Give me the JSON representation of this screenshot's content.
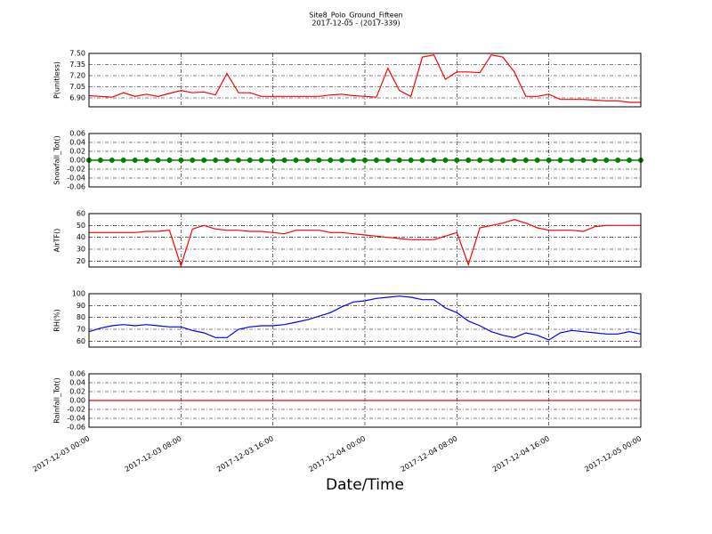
{
  "chart_data": [
    {
      "type": "line",
      "title": "Site8_Polo_Ground_Fifteen",
      "subtitle": "2017-12-05 - (2017-339)",
      "ylabel": "P(unitless)",
      "ylim": [
        6.78,
        7.5
      ],
      "yticks": [
        {
          "value": 6.9,
          "label": "6.90"
        },
        7.05,
        {
          "value": 7.2,
          "label": "7.20"
        },
        7.35,
        {
          "value": 7.5,
          "label": "7.50"
        }
      ],
      "xlim": [
        "2017-12-03 00:00",
        "2017-12-05 00:00"
      ],
      "xticks": [
        "2017-12-03 00:00",
        "2017-12-03 08:00",
        "2017-12-03 16:00",
        "2017-12-04 00:00",
        "2017-12-04 08:00",
        "2017-12-04 16:00",
        "2017-12-05 00:00"
      ],
      "grid": true,
      "x": [
        "2017-12-03 00:00",
        "2017-12-03 01:00",
        "2017-12-03 02:00",
        "2017-12-03 03:00",
        "2017-12-03 04:00",
        "2017-12-03 05:00",
        "2017-12-03 06:00",
        "2017-12-03 07:00",
        "2017-12-03 08:00",
        "2017-12-03 09:00",
        "2017-12-03 10:00",
        "2017-12-03 11:00",
        "2017-12-03 12:00",
        "2017-12-03 13:00",
        "2017-12-03 14:00",
        "2017-12-03 15:00",
        "2017-12-03 16:00",
        "2017-12-03 17:00",
        "2017-12-03 18:00",
        "2017-12-03 19:00",
        "2017-12-03 20:00",
        "2017-12-03 21:00",
        "2017-12-03 22:00",
        "2017-12-03 23:00",
        "2017-12-04 00:00",
        "2017-12-04 01:00",
        "2017-12-04 02:00",
        "2017-12-04 03:00",
        "2017-12-04 04:00",
        "2017-12-04 05:00",
        "2017-12-04 06:00",
        "2017-12-04 07:00",
        "2017-12-04 08:00",
        "2017-12-04 09:00",
        "2017-12-04 10:00",
        "2017-12-04 11:00",
        "2017-12-04 12:00",
        "2017-12-04 13:00",
        "2017-12-04 14:00",
        "2017-12-04 15:00",
        "2017-12-04 16:00",
        "2017-12-04 17:00",
        "2017-12-04 18:00",
        "2017-12-04 19:00",
        "2017-12-04 20:00",
        "2017-12-04 21:00",
        "2017-12-04 22:00",
        "2017-12-04 23:00",
        "2017-12-05 00:00"
      ],
      "series": [
        {
          "color": "#ff0000",
          "values": [
            6.93,
            6.92,
            6.91,
            6.97,
            6.92,
            6.95,
            6.92,
            6.96,
            7.0,
            6.97,
            6.98,
            6.94,
            7.23,
            6.97,
            6.97,
            6.92,
            6.92,
            6.92,
            6.92,
            6.92,
            6.92,
            6.94,
            6.95,
            6.93,
            6.92,
            6.91,
            7.3,
            7.0,
            6.92,
            7.45,
            7.48,
            7.15,
            7.25,
            7.25,
            7.24,
            7.48,
            7.45,
            7.25,
            6.92,
            6.92,
            6.95,
            6.88,
            6.88,
            6.88,
            6.87,
            6.86,
            6.86,
            6.84,
            6.84
          ]
        }
      ]
    },
    {
      "type": "line",
      "ylabel": "Snowfall_Tot()",
      "ylim": [
        -0.06,
        0.06
      ],
      "yticks": [
        -0.06,
        -0.04,
        -0.02,
        {
          "value": 0,
          "label": "0.00"
        },
        0.02,
        0.04,
        0.06
      ],
      "xlim": [
        "2017-12-03 00:00",
        "2017-12-05 00:00"
      ],
      "xticks": [
        "2017-12-03 00:00",
        "2017-12-03 08:00",
        "2017-12-03 16:00",
        "2017-12-04 00:00",
        "2017-12-04 08:00",
        "2017-12-04 16:00",
        "2017-12-05 00:00"
      ],
      "grid": true,
      "x": [
        "2017-12-03 00:00",
        "2017-12-03 01:00",
        "2017-12-03 02:00",
        "2017-12-03 03:00",
        "2017-12-03 04:00",
        "2017-12-03 05:00",
        "2017-12-03 06:00",
        "2017-12-03 07:00",
        "2017-12-03 08:00",
        "2017-12-03 09:00",
        "2017-12-03 10:00",
        "2017-12-03 11:00",
        "2017-12-03 12:00",
        "2017-12-03 13:00",
        "2017-12-03 14:00",
        "2017-12-03 15:00",
        "2017-12-03 16:00",
        "2017-12-03 17:00",
        "2017-12-03 18:00",
        "2017-12-03 19:00",
        "2017-12-03 20:00",
        "2017-12-03 21:00",
        "2017-12-03 22:00",
        "2017-12-03 23:00",
        "2017-12-04 00:00",
        "2017-12-04 01:00",
        "2017-12-04 02:00",
        "2017-12-04 03:00",
        "2017-12-04 04:00",
        "2017-12-04 05:00",
        "2017-12-04 06:00",
        "2017-12-04 07:00",
        "2017-12-04 08:00",
        "2017-12-04 09:00",
        "2017-12-04 10:00",
        "2017-12-04 11:00",
        "2017-12-04 12:00",
        "2017-12-04 13:00",
        "2017-12-04 14:00",
        "2017-12-04 15:00",
        "2017-12-04 16:00",
        "2017-12-04 17:00",
        "2017-12-04 18:00",
        "2017-12-04 19:00",
        "2017-12-04 20:00",
        "2017-12-04 21:00",
        "2017-12-04 22:00",
        "2017-12-04 23:00",
        "2017-12-05 00:00"
      ],
      "series": [
        {
          "color": "#008000",
          "marker": true,
          "values": [
            0,
            0,
            0,
            0,
            0,
            0,
            0,
            0,
            0,
            0,
            0,
            0,
            0,
            0,
            0,
            0,
            0,
            0,
            0,
            0,
            0,
            0,
            0,
            0,
            0,
            0,
            0,
            0,
            0,
            0,
            0,
            0,
            0,
            0,
            0,
            0,
            0,
            0,
            0,
            0,
            0,
            0,
            0,
            0,
            0,
            0,
            0,
            0,
            0
          ]
        }
      ]
    },
    {
      "type": "line",
      "ylabel": "AirTF()",
      "ylim": [
        15,
        60
      ],
      "yticks": [
        20,
        30,
        40,
        50,
        60
      ],
      "xlim": [
        "2017-12-03 00:00",
        "2017-12-05 00:00"
      ],
      "xticks": [
        "2017-12-03 00:00",
        "2017-12-03 08:00",
        "2017-12-03 16:00",
        "2017-12-04 00:00",
        "2017-12-04 08:00",
        "2017-12-04 16:00",
        "2017-12-05 00:00"
      ],
      "grid": true,
      "x": [
        "2017-12-03 00:00",
        "2017-12-03 01:00",
        "2017-12-03 02:00",
        "2017-12-03 03:00",
        "2017-12-03 04:00",
        "2017-12-03 05:00",
        "2017-12-03 06:00",
        "2017-12-03 07:00",
        "2017-12-03 08:00",
        "2017-12-03 09:00",
        "2017-12-03 10:00",
        "2017-12-03 11:00",
        "2017-12-03 12:00",
        "2017-12-03 13:00",
        "2017-12-03 14:00",
        "2017-12-03 15:00",
        "2017-12-03 16:00",
        "2017-12-03 17:00",
        "2017-12-03 18:00",
        "2017-12-03 19:00",
        "2017-12-03 20:00",
        "2017-12-03 21:00",
        "2017-12-03 22:00",
        "2017-12-03 23:00",
        "2017-12-04 00:00",
        "2017-12-04 01:00",
        "2017-12-04 02:00",
        "2017-12-04 03:00",
        "2017-12-04 04:00",
        "2017-12-04 05:00",
        "2017-12-04 06:00",
        "2017-12-04 07:00",
        "2017-12-04 08:00",
        "2017-12-04 09:00",
        "2017-12-04 10:00",
        "2017-12-04 11:00",
        "2017-12-04 12:00",
        "2017-12-04 13:00",
        "2017-12-04 14:00",
        "2017-12-04 15:00",
        "2017-12-04 16:00",
        "2017-12-04 17:00",
        "2017-12-04 18:00",
        "2017-12-04 19:00",
        "2017-12-04 20:00",
        "2017-12-04 21:00",
        "2017-12-04 22:00",
        "2017-12-04 23:00",
        "2017-12-05 00:00"
      ],
      "series": [
        {
          "color": "#ff0000",
          "values": [
            44,
            44,
            44,
            44,
            44,
            45,
            45,
            46,
            16,
            47,
            50,
            47,
            46,
            46,
            45,
            45,
            44,
            43,
            46,
            46,
            46,
            44,
            44,
            43,
            42,
            41,
            40,
            39,
            38,
            38,
            38,
            41,
            44,
            17,
            48,
            50,
            52,
            55,
            52,
            48,
            46,
            46,
            46,
            45,
            49,
            50,
            50,
            50,
            50
          ]
        }
      ]
    },
    {
      "type": "line",
      "ylabel": "RH(%)",
      "ylim": [
        55,
        100
      ],
      "yticks": [
        60,
        70,
        80,
        90,
        100
      ],
      "xlim": [
        "2017-12-03 00:00",
        "2017-12-05 00:00"
      ],
      "xticks": [
        "2017-12-03 00:00",
        "2017-12-03 08:00",
        "2017-12-03 16:00",
        "2017-12-04 00:00",
        "2017-12-04 08:00",
        "2017-12-04 16:00",
        "2017-12-05 00:00"
      ],
      "grid": true,
      "x": [
        "2017-12-03 00:00",
        "2017-12-03 01:00",
        "2017-12-03 02:00",
        "2017-12-03 03:00",
        "2017-12-03 04:00",
        "2017-12-03 05:00",
        "2017-12-03 06:00",
        "2017-12-03 07:00",
        "2017-12-03 08:00",
        "2017-12-03 09:00",
        "2017-12-03 10:00",
        "2017-12-03 11:00",
        "2017-12-03 12:00",
        "2017-12-03 13:00",
        "2017-12-03 14:00",
        "2017-12-03 15:00",
        "2017-12-03 16:00",
        "2017-12-03 17:00",
        "2017-12-03 18:00",
        "2017-12-03 19:00",
        "2017-12-03 20:00",
        "2017-12-03 21:00",
        "2017-12-03 22:00",
        "2017-12-03 23:00",
        "2017-12-04 00:00",
        "2017-12-04 01:00",
        "2017-12-04 02:00",
        "2017-12-04 03:00",
        "2017-12-04 04:00",
        "2017-12-04 05:00",
        "2017-12-04 06:00",
        "2017-12-04 07:00",
        "2017-12-04 08:00",
        "2017-12-04 09:00",
        "2017-12-04 10:00",
        "2017-12-04 11:00",
        "2017-12-04 12:00",
        "2017-12-04 13:00",
        "2017-12-04 14:00",
        "2017-12-04 15:00",
        "2017-12-04 16:00",
        "2017-12-04 17:00",
        "2017-12-04 18:00",
        "2017-12-04 19:00",
        "2017-12-04 20:00",
        "2017-12-04 21:00",
        "2017-12-04 22:00",
        "2017-12-04 23:00",
        "2017-12-05 00:00"
      ],
      "series": [
        {
          "color": "#0000ff",
          "values": [
            68,
            71,
            73,
            74,
            73,
            74,
            73,
            72,
            72,
            69,
            67,
            63,
            63,
            70,
            72,
            73,
            73,
            74,
            76,
            78,
            81,
            84,
            89,
            93,
            94,
            96,
            97,
            98,
            97,
            95,
            95,
            88,
            84,
            77,
            73,
            68,
            65,
            63,
            67,
            65,
            61,
            67,
            69,
            68,
            67,
            66,
            66,
            68,
            66
          ]
        }
      ]
    },
    {
      "type": "line",
      "ylabel": "Rainfall_Tot()",
      "xlabel": "Date/Time",
      "ylim": [
        -0.06,
        0.06
      ],
      "yticks": [
        -0.06,
        -0.04,
        -0.02,
        {
          "value": 0,
          "label": "0.00"
        },
        0.02,
        0.04,
        0.06
      ],
      "xlim": [
        "2017-12-03 00:00",
        "2017-12-05 00:00"
      ],
      "xticks": [
        "2017-12-03 00:00",
        "2017-12-03 08:00",
        "2017-12-03 16:00",
        "2017-12-04 00:00",
        "2017-12-04 08:00",
        "2017-12-04 16:00",
        "2017-12-05 00:00"
      ],
      "grid": true,
      "x": [
        "2017-12-03 00:00",
        "2017-12-03 01:00",
        "2017-12-03 02:00",
        "2017-12-03 03:00",
        "2017-12-03 04:00",
        "2017-12-03 05:00",
        "2017-12-03 06:00",
        "2017-12-03 07:00",
        "2017-12-03 08:00",
        "2017-12-03 09:00",
        "2017-12-03 10:00",
        "2017-12-03 11:00",
        "2017-12-03 12:00",
        "2017-12-03 13:00",
        "2017-12-03 14:00",
        "2017-12-03 15:00",
        "2017-12-03 16:00",
        "2017-12-03 17:00",
        "2017-12-03 18:00",
        "2017-12-03 19:00",
        "2017-12-03 20:00",
        "2017-12-03 21:00",
        "2017-12-03 22:00",
        "2017-12-03 23:00",
        "2017-12-04 00:00",
        "2017-12-04 01:00",
        "2017-12-04 02:00",
        "2017-12-04 03:00",
        "2017-12-04 04:00",
        "2017-12-04 05:00",
        "2017-12-04 06:00",
        "2017-12-04 07:00",
        "2017-12-04 08:00",
        "2017-12-04 09:00",
        "2017-12-04 10:00",
        "2017-12-04 11:00",
        "2017-12-04 12:00",
        "2017-12-04 13:00",
        "2017-12-04 14:00",
        "2017-12-04 15:00",
        "2017-12-04 16:00",
        "2017-12-04 17:00",
        "2017-12-04 18:00",
        "2017-12-04 19:00",
        "2017-12-04 20:00",
        "2017-12-04 21:00",
        "2017-12-04 22:00",
        "2017-12-04 23:00",
        "2017-12-05 00:00"
      ],
      "series": [
        {
          "color": "#ff0000",
          "values": [
            0,
            0,
            0,
            0,
            0,
            0,
            0,
            0,
            0,
            0,
            0,
            0,
            0,
            0,
            0,
            0,
            0,
            0,
            0,
            0,
            0,
            0,
            0,
            0,
            0,
            0,
            0,
            0,
            0,
            0,
            0,
            0,
            0,
            0,
            0,
            0,
            0,
            0,
            0,
            0,
            0,
            0,
            0,
            0,
            0,
            0,
            0,
            0,
            0
          ]
        }
      ]
    }
  ]
}
